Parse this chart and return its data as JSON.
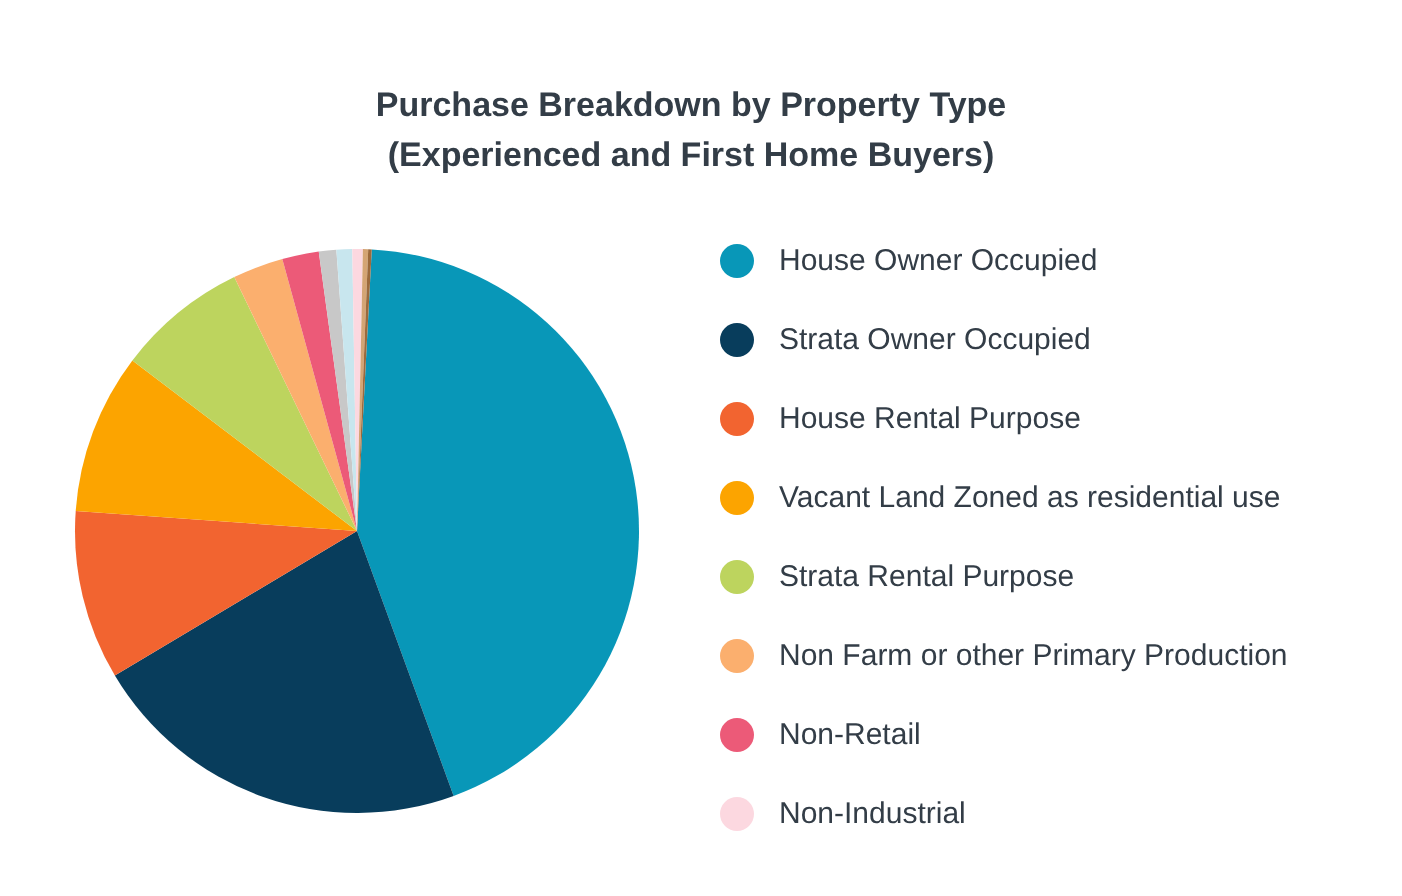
{
  "chart_data": {
    "type": "pie",
    "title": "Purchase Breakdown by Property Type\n(Experienced and First Home Buyers)",
    "legend": "right",
    "categories": [
      "House Owner Occupied",
      "Strata Owner Occupied",
      "House Rental Purpose",
      "Vacant Land Zoned as residential use",
      "Strata Rental Purpose",
      "Non Farm or other Primary Production",
      "Non-Retail",
      "Non-Industrial",
      null,
      null,
      null,
      null
    ],
    "values": [
      43.6,
      22,
      9.7,
      9.2,
      7.5,
      2.9,
      2.1,
      0.6,
      1,
      0.9,
      0.3,
      0.2
    ],
    "colors": [
      "#0897b8",
      "#083d5c",
      "#f26430",
      "#fca400",
      "#bdd45e",
      "#fbaf6e",
      "#ec5a78",
      "#fcd8e0",
      "#c8c8c8",
      "#c8e6ee",
      "#d4a574",
      "#9c6a3c"
    ]
  }
}
